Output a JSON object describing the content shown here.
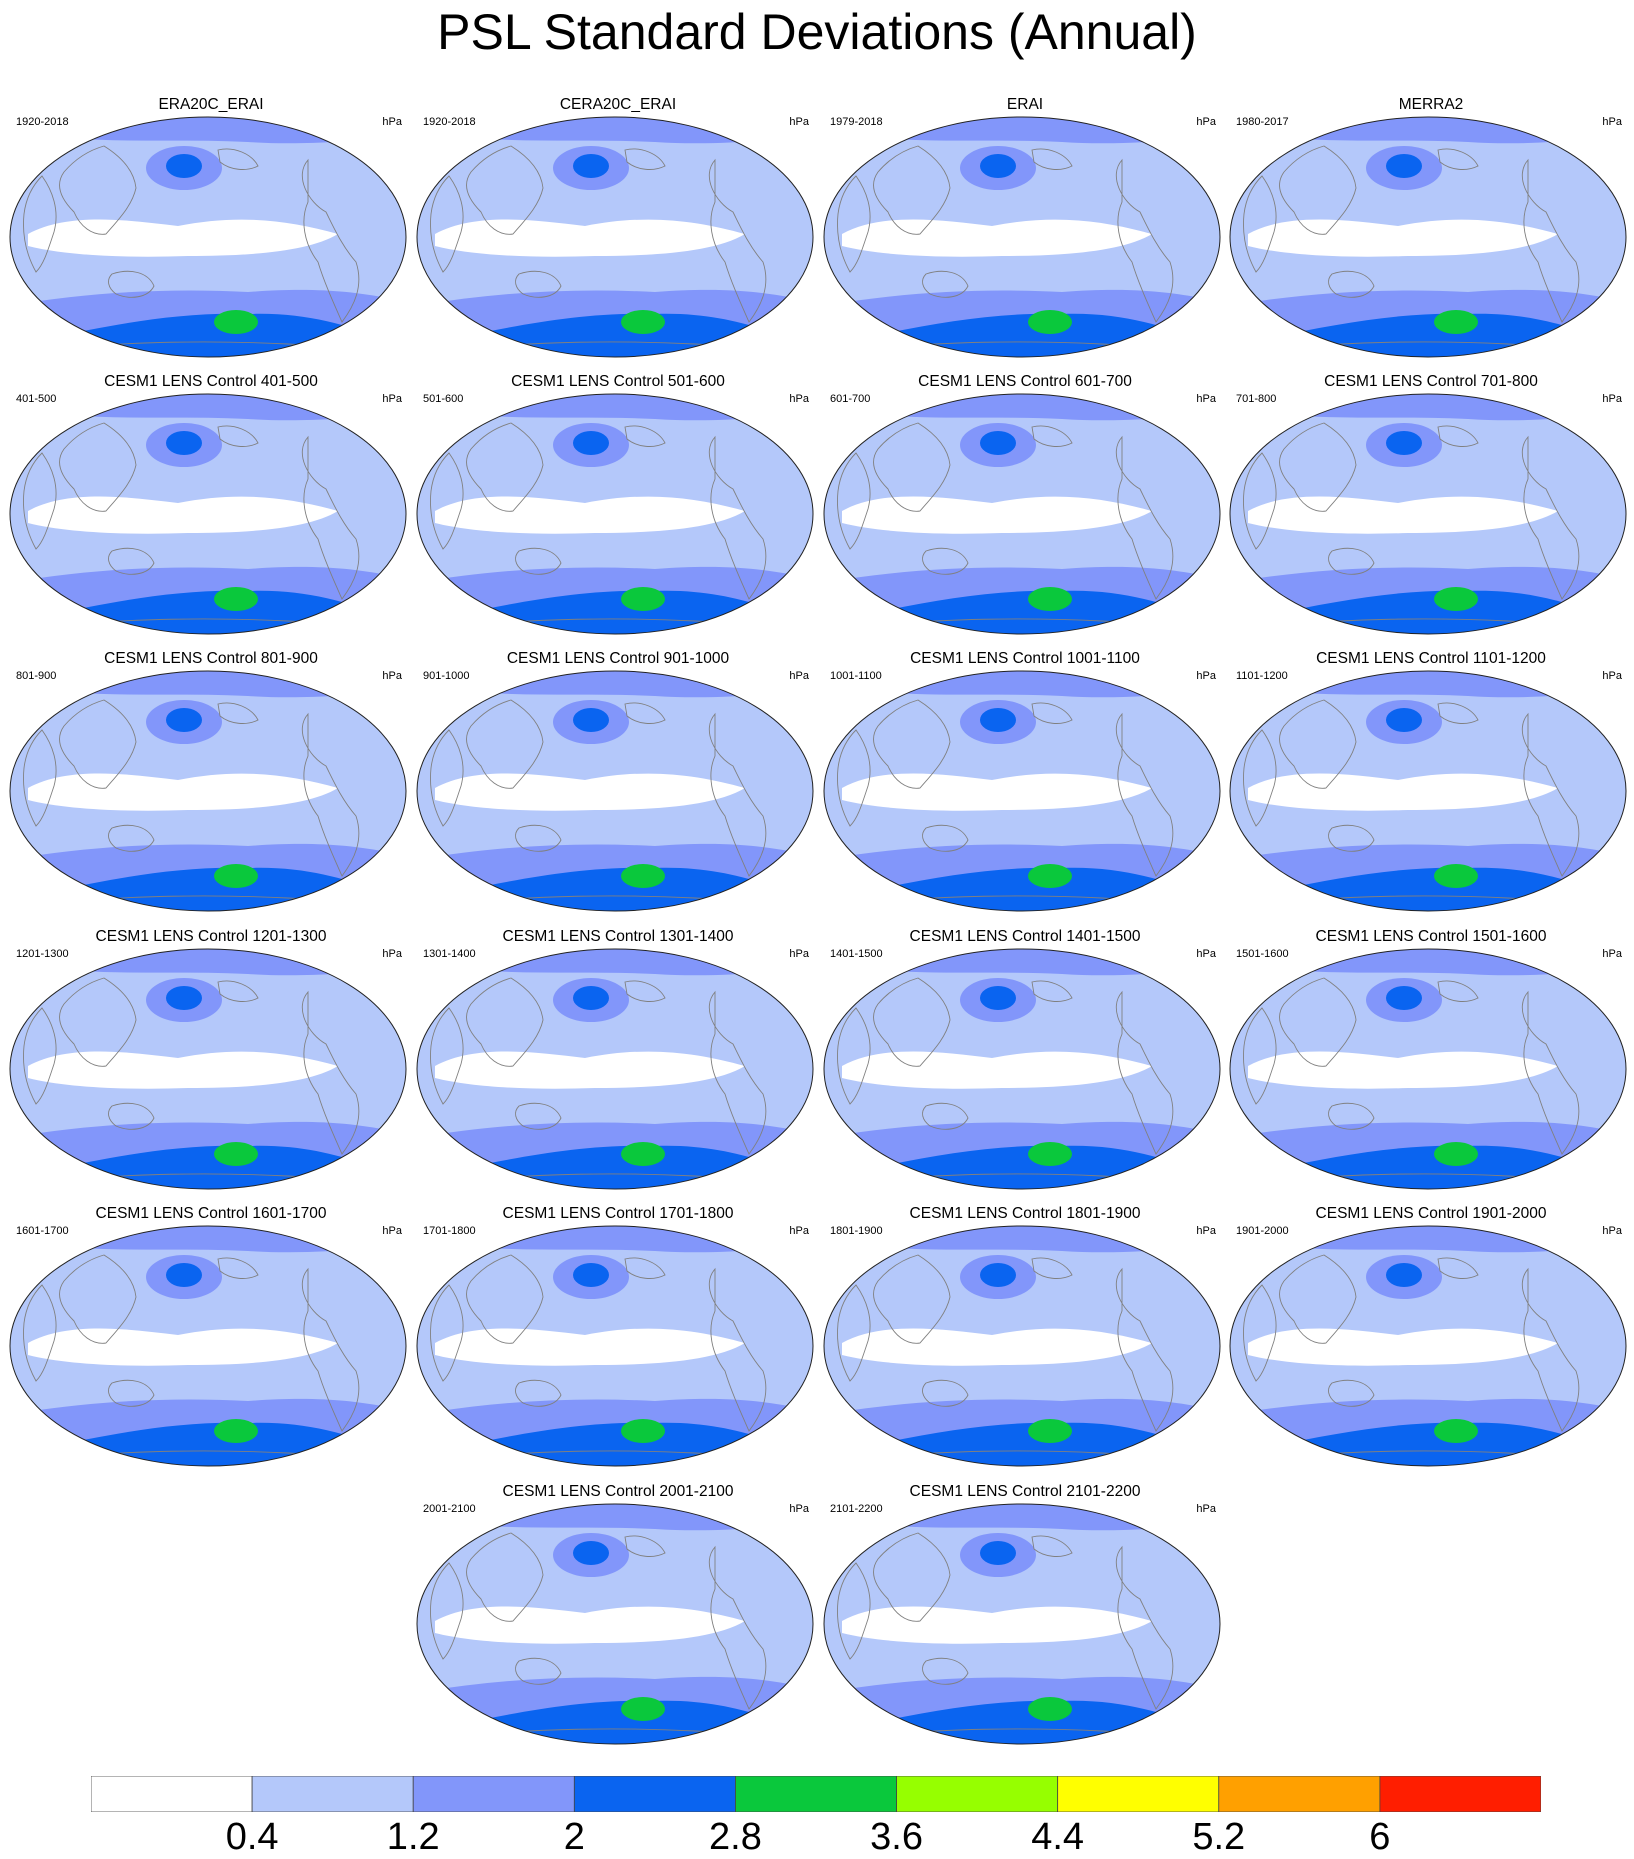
{
  "title": "PSL Standard Deviations (Annual)",
  "units": "hPa",
  "colors": {
    "levels": [
      "#ffffff",
      "#b4c8fa",
      "#8296fa",
      "#0a64f0",
      "#0ac83c",
      "#96ff00",
      "#ffff00",
      "#ffa000",
      "#ff1e00"
    ],
    "coastline": "#808080",
    "outline": "#222222"
  },
  "colorbar": {
    "labels": [
      "0.4",
      "1.2",
      "2",
      "2.8",
      "3.6",
      "4.4",
      "5.2",
      "6"
    ]
  },
  "panels": [
    {
      "title": "ERA20C_ERAI",
      "period": "1920-2018",
      "units": "hPa"
    },
    {
      "title": "CERA20C_ERAI",
      "period": "1920-2018",
      "units": "hPa"
    },
    {
      "title": "ERAI",
      "period": "1979-2018",
      "units": "hPa"
    },
    {
      "title": "MERRA2",
      "period": "1980-2017",
      "units": "hPa"
    },
    {
      "title": "CESM1 LENS Control 401-500",
      "period": "401-500",
      "units": "hPa"
    },
    {
      "title": "CESM1 LENS Control 501-600",
      "period": "501-600",
      "units": "hPa"
    },
    {
      "title": "CESM1 LENS Control 601-700",
      "period": "601-700",
      "units": "hPa"
    },
    {
      "title": "CESM1 LENS Control 701-800",
      "period": "701-800",
      "units": "hPa"
    },
    {
      "title": "CESM1 LENS Control 801-900",
      "period": "801-900",
      "units": "hPa"
    },
    {
      "title": "CESM1 LENS Control 901-1000",
      "period": "901-1000",
      "units": "hPa"
    },
    {
      "title": "CESM1 LENS Control 1001-1100",
      "period": "1001-1100",
      "units": "hPa"
    },
    {
      "title": "CESM1 LENS Control 1101-1200",
      "period": "1101-1200",
      "units": "hPa"
    },
    {
      "title": "CESM1 LENS Control 1201-1300",
      "period": "1201-1300",
      "units": "hPa"
    },
    {
      "title": "CESM1 LENS Control 1301-1400",
      "period": "1301-1400",
      "units": "hPa"
    },
    {
      "title": "CESM1 LENS Control 1401-1500",
      "period": "1401-1500",
      "units": "hPa"
    },
    {
      "title": "CESM1 LENS Control 1501-1600",
      "period": "1501-1600",
      "units": "hPa"
    },
    {
      "title": "CESM1 LENS Control 1601-1700",
      "period": "1601-1700",
      "units": "hPa"
    },
    {
      "title": "CESM1 LENS Control 1701-1800",
      "period": "1701-1800",
      "units": "hPa"
    },
    {
      "title": "CESM1 LENS Control 1801-1900",
      "period": "1801-1900",
      "units": "hPa"
    },
    {
      "title": "CESM1 LENS Control 1901-2000",
      "period": "1901-2000",
      "units": "hPa"
    },
    {
      "title": "CESM1 LENS Control 2001-2100",
      "period": "2001-2100",
      "units": "hPa"
    },
    {
      "title": "CESM1 LENS Control 2101-2200",
      "period": "2101-2200",
      "units": "hPa"
    }
  ]
}
